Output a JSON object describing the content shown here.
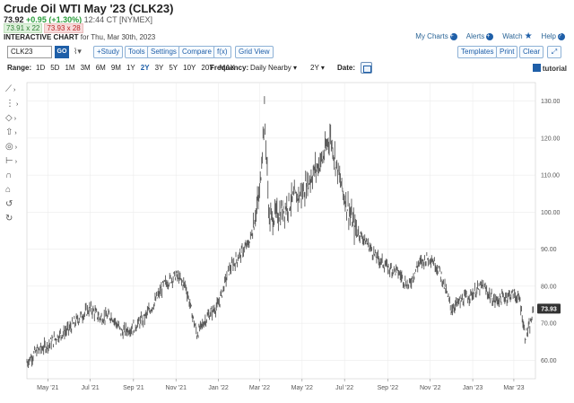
{
  "header": {
    "title": "Crude Oil WTI May '23 (CLK23)",
    "last": "73.92",
    "change": "+0.95 (+1.30%)",
    "time": "12:44 CT [NYMEX]",
    "bid": "73.91 x 22",
    "ask": "73.93 x 28",
    "chart_label": "INTERACTIVE CHART",
    "chart_date": "for Thu, Mar 30th, 2023"
  },
  "links": {
    "my_charts": "My Charts",
    "alerts": "Alerts",
    "watch": "Watch",
    "help": "Help"
  },
  "toolbar": {
    "symbol": "CLK23",
    "go": "GO",
    "study": "+Study",
    "tools": "Tools",
    "settings": "Settings",
    "compare": "Compare",
    "fx": "f(x)",
    "grid_view": "Grid View",
    "templates": "Templates",
    "print": "Print",
    "clear": "Clear"
  },
  "range_bar": {
    "range_label": "Range:",
    "periods": [
      "1D",
      "5D",
      "1M",
      "3M",
      "6M",
      "9M",
      "1Y",
      "2Y",
      "3Y",
      "5Y",
      "10Y",
      "20Y",
      "MAX"
    ],
    "active_period": "2Y",
    "frequency_label": "Frequency:",
    "frequency_value": "Daily Nearby",
    "zoom_value": "2Y",
    "date_label": "Date:",
    "tutorial": "tutorial"
  },
  "colors": {
    "accent": "#1f5fa8",
    "up": "#2a9d3b",
    "down": "#b22222",
    "bar": "#555555",
    "last_tag": "#333333"
  },
  "chart_data": {
    "type": "ohlc",
    "x": [
      "2021-04-01",
      "2021-04-15",
      "2021-05-01",
      "2021-05-15",
      "2021-06-01",
      "2021-06-15",
      "2021-07-01",
      "2021-07-15",
      "2021-08-01",
      "2021-08-15",
      "2021-09-01",
      "2021-09-15",
      "2021-10-01",
      "2021-10-15",
      "2021-11-01",
      "2021-11-15",
      "2021-12-01",
      "2021-12-15",
      "2022-01-01",
      "2022-01-15",
      "2022-02-01",
      "2022-02-15",
      "2022-03-01",
      "2022-03-08",
      "2022-03-15",
      "2022-04-01",
      "2022-04-15",
      "2022-05-01",
      "2022-05-15",
      "2022-06-01",
      "2022-06-10",
      "2022-06-25",
      "2022-07-01",
      "2022-07-15",
      "2022-08-01",
      "2022-08-15",
      "2022-09-01",
      "2022-09-15",
      "2022-10-01",
      "2022-10-15",
      "2022-11-01",
      "2022-11-15",
      "2022-12-01",
      "2022-12-15",
      "2023-01-01",
      "2023-01-15",
      "2023-02-01",
      "2023-02-15",
      "2023-03-01",
      "2023-03-10",
      "2023-03-17",
      "2023-03-24",
      "2023-03-30"
    ],
    "y": [
      59.5,
      62.5,
      64.0,
      66.5,
      68.5,
      71.5,
      74.0,
      71.5,
      72.0,
      67.5,
      69.0,
      71.0,
      75.5,
      80.5,
      83.0,
      80.0,
      67.0,
      71.5,
      75.0,
      84.0,
      88.5,
      92.0,
      105.0,
      127.0,
      98.0,
      100.0,
      103.0,
      105.0,
      110.0,
      115.0,
      121.0,
      108.0,
      104.0,
      96.0,
      92.0,
      88.0,
      85.0,
      84.0,
      80.0,
      86.0,
      88.0,
      84.0,
      74.0,
      76.0,
      78.0,
      80.0,
      76.0,
      77.0,
      78.0,
      76.0,
      66.5,
      69.0,
      73.93
    ],
    "ylim": [
      55,
      135
    ],
    "y_ticks": [
      "60.00",
      "70.00",
      "80.00",
      "90.00",
      "100.00",
      "110.00",
      "120.00",
      "130.00"
    ],
    "x_tick_labels": [
      "May '21",
      "Jul '21",
      "Sep '21",
      "Nov '21",
      "Jan '22",
      "Mar '22",
      "May '22",
      "Jul '22",
      "Sep '22",
      "Nov '22",
      "Jan '23",
      "Mar '23"
    ],
    "last_value": "73.93",
    "grid": true
  },
  "sidetools": [
    {
      "icon": "line-draw-icon",
      "glyph": "⟋",
      "arrow": "›"
    },
    {
      "icon": "fib-icon",
      "glyph": "⋮",
      "arrow": "›"
    },
    {
      "icon": "shape-icon",
      "glyph": "◇",
      "arrow": "›"
    },
    {
      "icon": "arrow-up-icon",
      "glyph": "⇧",
      "arrow": "›"
    },
    {
      "icon": "target-icon",
      "glyph": "◎",
      "arrow": "›"
    },
    {
      "icon": "measure-icon",
      "glyph": "⊢",
      "arrow": "›"
    },
    {
      "icon": "magnet-icon",
      "glyph": "∩",
      "arrow": ""
    },
    {
      "icon": "lock-icon",
      "glyph": "⌂",
      "arrow": ""
    },
    {
      "icon": "undo-icon",
      "glyph": "↺",
      "arrow": ""
    },
    {
      "icon": "redo-icon",
      "glyph": "↻",
      "arrow": ""
    }
  ]
}
